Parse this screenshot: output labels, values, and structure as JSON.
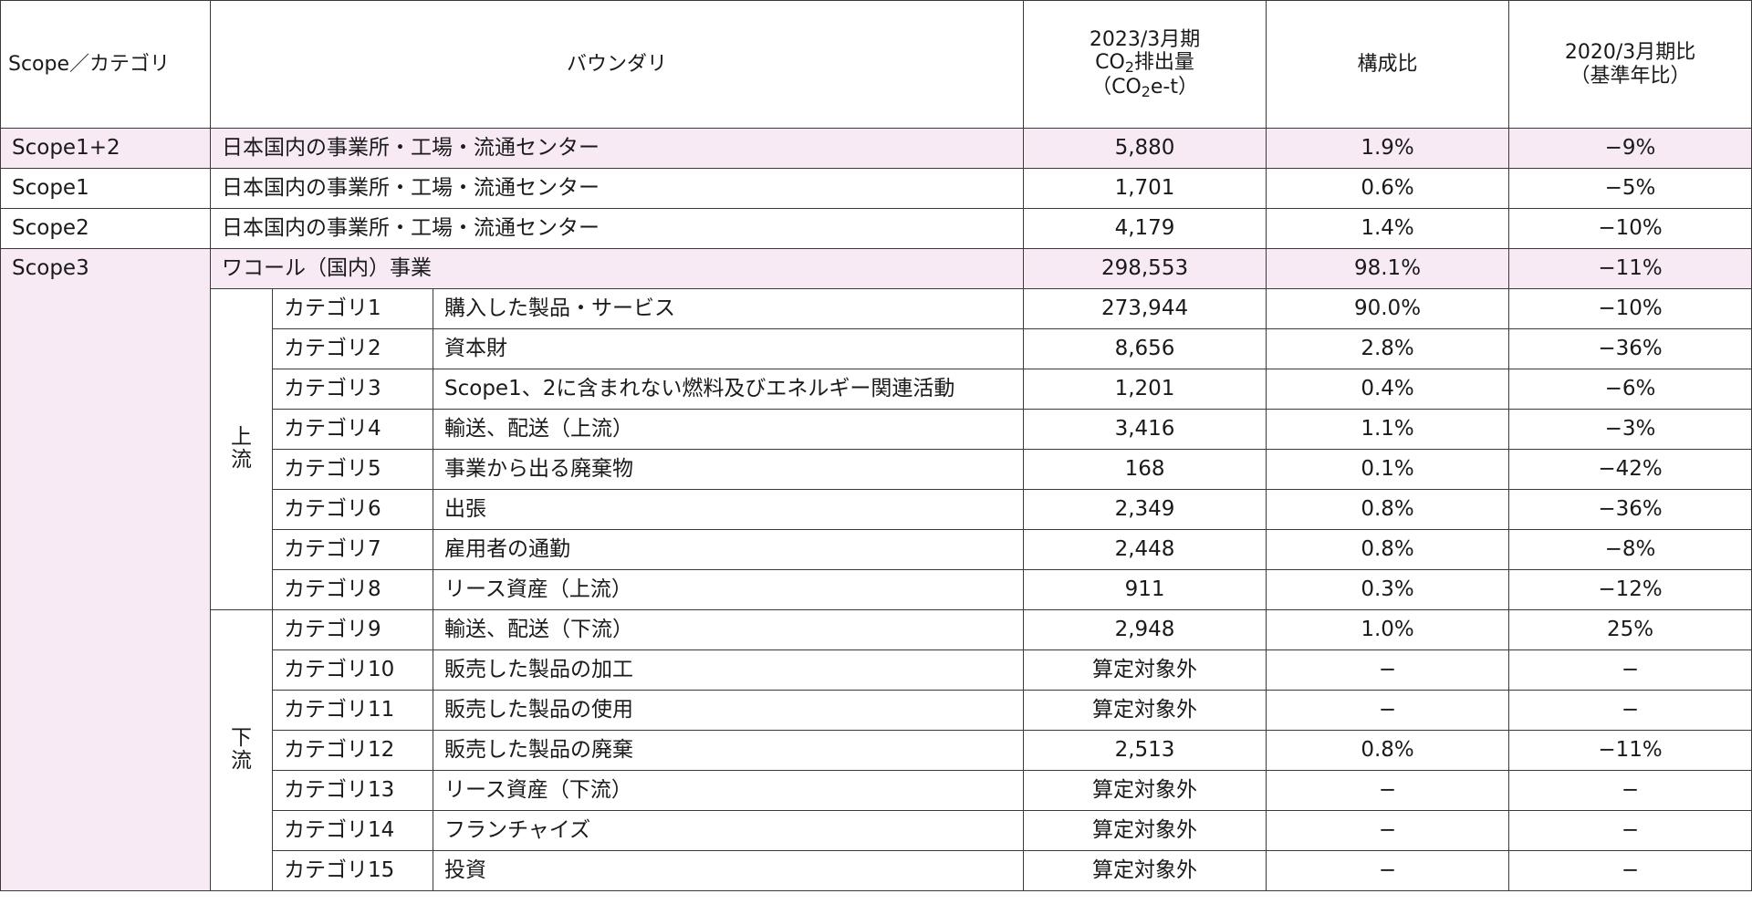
{
  "header": {
    "scope_category": "Scope／カテゴリ",
    "boundary": "バウンダリ",
    "emissions_line1": "2023/3月期",
    "emissions_co": "CO",
    "emissions_sub": "2",
    "emissions_rest": "排出量",
    "emissions_unit_open": "（CO",
    "emissions_unit_sub": "2",
    "emissions_unit_rest": "e-t）",
    "ratio": "構成比",
    "compare_line1": "2020/3月期比",
    "compare_line2": "（基準年比）"
  },
  "summary_rows": [
    {
      "scope": "Scope1+2",
      "boundary": "日本国内の事業所・工場・流通センター",
      "emissions": "5,880",
      "ratio": "1.9%",
      "change": "−9%",
      "highlight": true
    },
    {
      "scope": "Scope1",
      "boundary": "日本国内の事業所・工場・流通センター",
      "emissions": "1,701",
      "ratio": "0.6%",
      "change": "−5%",
      "highlight": false
    },
    {
      "scope": "Scope2",
      "boundary": "日本国内の事業所・工場・流通センター",
      "emissions": "4,179",
      "ratio": "1.4%",
      "change": "−10%",
      "highlight": false
    }
  ],
  "scope3": {
    "scope": "Scope3",
    "boundary": "ワコール（国内）事業",
    "emissions": "298,553",
    "ratio": "98.1%",
    "change": "−11%"
  },
  "groups": {
    "upstream": "上流",
    "downstream": "下流"
  },
  "categories": [
    {
      "category": "カテゴリ1",
      "description": "購入した製品・サービス",
      "emissions": "273,944",
      "ratio": "90.0%",
      "change": "−10%"
    },
    {
      "category": "カテゴリ2",
      "description": "資本財",
      "emissions": "8,656",
      "ratio": "2.8%",
      "change": "−36%"
    },
    {
      "category": "カテゴリ3",
      "description": "Scope1、2に含まれない燃料及びエネルギー関連活動",
      "emissions": "1,201",
      "ratio": "0.4%",
      "change": "−6%"
    },
    {
      "category": "カテゴリ4",
      "description": "輸送、配送（上流）",
      "emissions": "3,416",
      "ratio": "1.1%",
      "change": "−3%"
    },
    {
      "category": "カテゴリ5",
      "description": "事業から出る廃棄物",
      "emissions": "168",
      "ratio": "0.1%",
      "change": "−42%"
    },
    {
      "category": "カテゴリ6",
      "description": "出張",
      "emissions": "2,349",
      "ratio": "0.8%",
      "change": "−36%"
    },
    {
      "category": "カテゴリ7",
      "description": "雇用者の通勤",
      "emissions": "2,448",
      "ratio": "0.8%",
      "change": "−8%"
    },
    {
      "category": "カテゴリ8",
      "description": "リース資産（上流）",
      "emissions": "911",
      "ratio": "0.3%",
      "change": "−12%"
    },
    {
      "category": "カテゴリ9",
      "description": "輸送、配送（下流）",
      "emissions": "2,948",
      "ratio": "1.0%",
      "change": "25%"
    },
    {
      "category": "カテゴリ10",
      "description": "販売した製品の加工",
      "emissions": "算定対象外",
      "ratio": "−",
      "change": "−"
    },
    {
      "category": "カテゴリ11",
      "description": "販売した製品の使用",
      "emissions": "算定対象外",
      "ratio": "−",
      "change": "−"
    },
    {
      "category": "カテゴリ12",
      "description": "販売した製品の廃棄",
      "emissions": "2,513",
      "ratio": "0.8%",
      "change": "−11%"
    },
    {
      "category": "カテゴリ13",
      "description": "リース資産（下流）",
      "emissions": "算定対象外",
      "ratio": "−",
      "change": "−"
    },
    {
      "category": "カテゴリ14",
      "description": "フランチャイズ",
      "emissions": "算定対象外",
      "ratio": "−",
      "change": "−"
    },
    {
      "category": "カテゴリ15",
      "description": "投資",
      "emissions": "算定対象外",
      "ratio": "−",
      "change": "−"
    }
  ],
  "colors": {
    "highlight_row": "#f7eaf5",
    "border": "#3a3a3a",
    "text": "#1a1a1a"
  }
}
